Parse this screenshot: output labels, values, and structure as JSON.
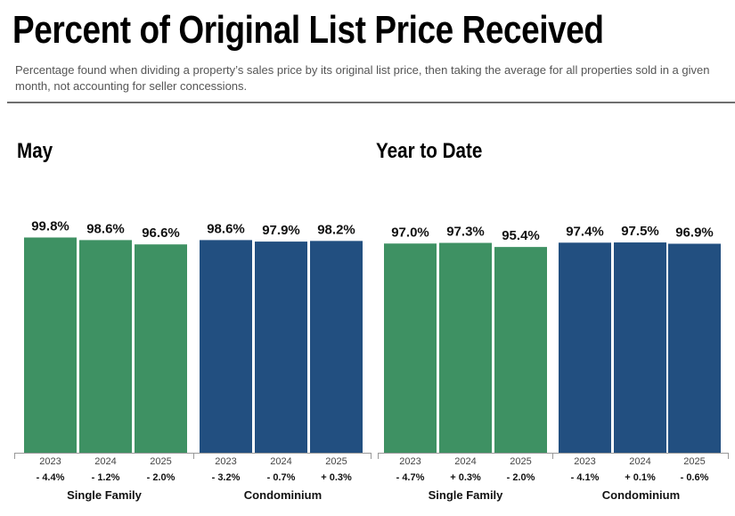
{
  "header": {
    "title": "Percent of Original List Price Received",
    "subtitle": "Percentage found when dividing a property’s sales price by its original list price, then taking the average for all properties sold in a given month, not accounting for seller concessions."
  },
  "colors": {
    "single_family": "#3e9163",
    "condominium": "#224f80",
    "axis": "#999999",
    "year_label": "#444444"
  },
  "chart_data": [
    {
      "panel_title": "May",
      "type": "bar",
      "ylim": [
        0,
        100
      ],
      "groups": [
        {
          "name": "Single Family",
          "color_key": "single_family",
          "bars": [
            {
              "year": "2023",
              "value": 99.8,
              "value_label": "99.8%",
              "change": "- 4.4%"
            },
            {
              "year": "2024",
              "value": 98.6,
              "value_label": "98.6%",
              "change": "- 1.2%"
            },
            {
              "year": "2025",
              "value": 96.6,
              "value_label": "96.6%",
              "change": "- 2.0%"
            }
          ]
        },
        {
          "name": "Condominium",
          "color_key": "condominium",
          "bars": [
            {
              "year": "2023",
              "value": 98.6,
              "value_label": "98.6%",
              "change": "- 3.2%"
            },
            {
              "year": "2024",
              "value": 97.9,
              "value_label": "97.9%",
              "change": "- 0.7%"
            },
            {
              "year": "2025",
              "value": 98.2,
              "value_label": "98.2%",
              "change": "+ 0.3%"
            }
          ]
        }
      ]
    },
    {
      "panel_title": "Year to Date",
      "type": "bar",
      "ylim": [
        0,
        100
      ],
      "groups": [
        {
          "name": "Single Family",
          "color_key": "single_family",
          "bars": [
            {
              "year": "2023",
              "value": 97.0,
              "value_label": "97.0%",
              "change": "- 4.7%"
            },
            {
              "year": "2024",
              "value": 97.3,
              "value_label": "97.3%",
              "change": "+ 0.3%"
            },
            {
              "year": "2025",
              "value": 95.4,
              "value_label": "95.4%",
              "change": "- 2.0%"
            }
          ]
        },
        {
          "name": "Condominium",
          "color_key": "condominium",
          "bars": [
            {
              "year": "2023",
              "value": 97.4,
              "value_label": "97.4%",
              "change": "- 4.1%"
            },
            {
              "year": "2024",
              "value": 97.5,
              "value_label": "97.5%",
              "change": "+ 0.1%"
            },
            {
              "year": "2025",
              "value": 96.9,
              "value_label": "96.9%",
              "change": "- 0.6%"
            }
          ]
        }
      ]
    }
  ]
}
